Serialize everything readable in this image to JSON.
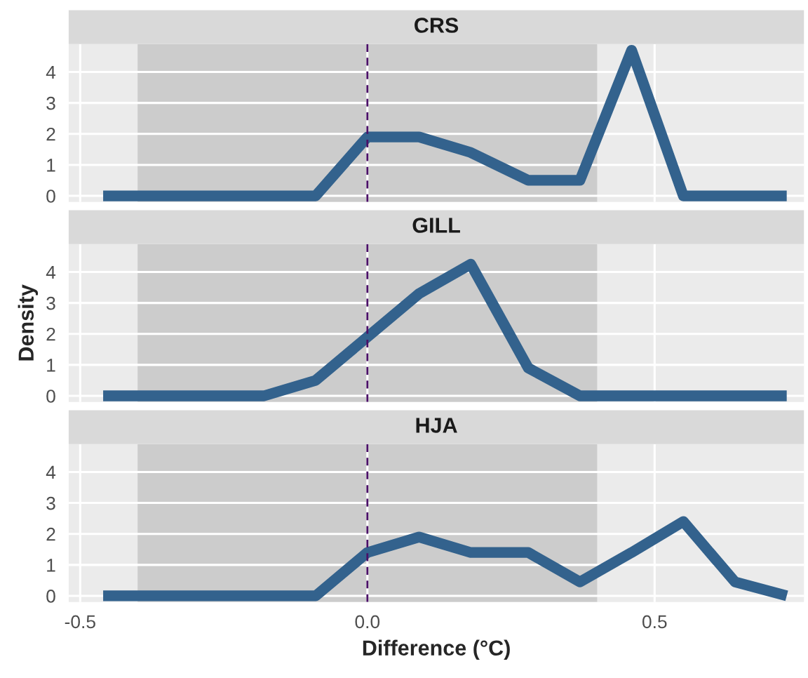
{
  "chart_data": [
    {
      "type": "line",
      "title": "CRS",
      "x": [
        -0.46,
        -0.37,
        -0.28,
        -0.18,
        -0.09,
        0.0,
        0.09,
        0.18,
        0.28,
        0.37,
        0.46,
        0.55,
        0.64,
        0.73
      ],
      "series": [
        {
          "color": "#33628d",
          "values": [
            0,
            0,
            0,
            0,
            0,
            1.9,
            1.9,
            1.4,
            0.5,
            0.5,
            4.7,
            0,
            0,
            0
          ]
        }
      ],
      "xlim": [
        -0.52,
        0.76
      ],
      "xticks": [
        -0.5,
        0.0,
        0.5
      ],
      "ylim": [
        -0.2,
        4.9
      ],
      "yticks": [
        0,
        1,
        2,
        3,
        4
      ],
      "tick_labels": "y",
      "grid": true,
      "ref_lines": [
        {
          "axis": "x",
          "value": 0,
          "color": "#4b1068",
          "line_style": "dashed"
        }
      ],
      "bands": [
        {
          "axis": "x",
          "from": -0.4,
          "to": 0.4,
          "color": "#cccccc"
        }
      ]
    },
    {
      "type": "line",
      "title": "GILL",
      "ylabel": "Density",
      "x": [
        -0.46,
        -0.37,
        -0.28,
        -0.18,
        -0.09,
        0.0,
        0.09,
        0.18,
        0.28,
        0.37,
        0.46,
        0.55,
        0.64,
        0.73
      ],
      "series": [
        {
          "color": "#33628d",
          "values": [
            0,
            0,
            0,
            0,
            0.5,
            1.9,
            3.3,
            4.25,
            0.9,
            0,
            0,
            0,
            0,
            0
          ]
        }
      ],
      "xlim": [
        -0.52,
        0.76
      ],
      "xticks": [
        -0.5,
        0.0,
        0.5
      ],
      "ylim": [
        -0.2,
        4.9
      ],
      "yticks": [
        0,
        1,
        2,
        3,
        4
      ],
      "tick_labels": "y",
      "grid": true,
      "ref_lines": [
        {
          "axis": "x",
          "value": 0,
          "color": "#4b1068",
          "line_style": "dashed"
        }
      ],
      "bands": [
        {
          "axis": "x",
          "from": -0.4,
          "to": 0.4,
          "color": "#cccccc"
        }
      ]
    },
    {
      "type": "line",
      "title": "HJA",
      "xlabel": "Difference (°C)",
      "x": [
        -0.46,
        -0.37,
        -0.28,
        -0.18,
        -0.09,
        0.0,
        0.09,
        0.18,
        0.28,
        0.37,
        0.46,
        0.55,
        0.64,
        0.73
      ],
      "series": [
        {
          "color": "#33628d",
          "values": [
            0,
            0,
            0,
            0,
            0,
            1.4,
            1.9,
            1.4,
            1.4,
            0.45,
            1.4,
            2.4,
            0.45,
            0
          ]
        }
      ],
      "xlim": [
        -0.52,
        0.76
      ],
      "xticks": [
        {
          "value": -0.5,
          "label": "-0.5"
        },
        {
          "value": 0.0,
          "label": "0.0"
        },
        0.5
      ],
      "ylim": [
        -0.2,
        4.9
      ],
      "yticks": [
        0,
        1,
        2,
        3,
        4
      ],
      "grid": true,
      "ref_lines": [
        {
          "axis": "x",
          "value": 0,
          "color": "#4b1068",
          "line_style": "dashed"
        }
      ],
      "bands": [
        {
          "axis": "x",
          "from": -0.4,
          "to": 0.4,
          "color": "#cccccc"
        }
      ]
    }
  ]
}
